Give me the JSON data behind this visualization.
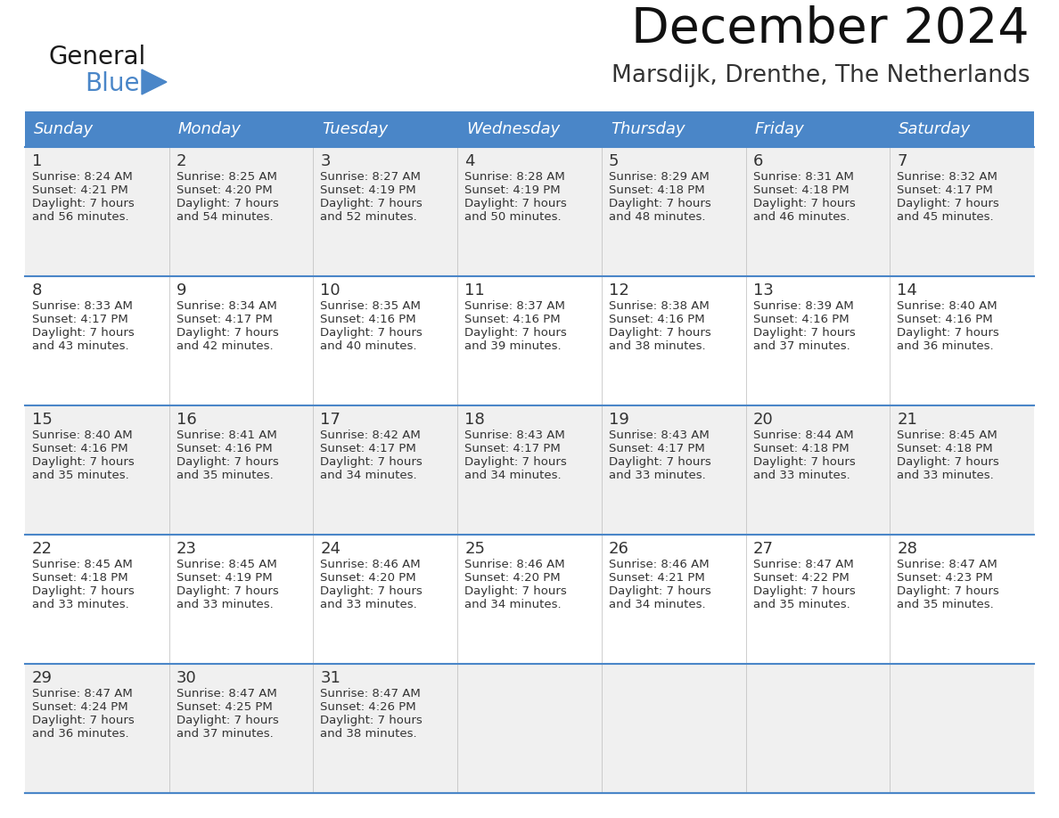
{
  "title": "December 2024",
  "subtitle": "Marsdijk, Drenthe, The Netherlands",
  "header_color": "#4a86c8",
  "header_text_color": "#ffffff",
  "cell_bg_white": "#ffffff",
  "cell_bg_gray": "#f0f0f0",
  "text_color": "#444444",
  "border_color": "#4a86c8",
  "days_of_week": [
    "Sunday",
    "Monday",
    "Tuesday",
    "Wednesday",
    "Thursday",
    "Friday",
    "Saturday"
  ],
  "calendar_data": [
    [
      {
        "day": 1,
        "sunrise": "8:24 AM",
        "sunset": "4:21 PM",
        "daylight": "7 hours and 56 minutes."
      },
      {
        "day": 2,
        "sunrise": "8:25 AM",
        "sunset": "4:20 PM",
        "daylight": "7 hours and 54 minutes."
      },
      {
        "day": 3,
        "sunrise": "8:27 AM",
        "sunset": "4:19 PM",
        "daylight": "7 hours and 52 minutes."
      },
      {
        "day": 4,
        "sunrise": "8:28 AM",
        "sunset": "4:19 PM",
        "daylight": "7 hours and 50 minutes."
      },
      {
        "day": 5,
        "sunrise": "8:29 AM",
        "sunset": "4:18 PM",
        "daylight": "7 hours and 48 minutes."
      },
      {
        "day": 6,
        "sunrise": "8:31 AM",
        "sunset": "4:18 PM",
        "daylight": "7 hours and 46 minutes."
      },
      {
        "day": 7,
        "sunrise": "8:32 AM",
        "sunset": "4:17 PM",
        "daylight": "7 hours and 45 minutes."
      }
    ],
    [
      {
        "day": 8,
        "sunrise": "8:33 AM",
        "sunset": "4:17 PM",
        "daylight": "7 hours and 43 minutes."
      },
      {
        "day": 9,
        "sunrise": "8:34 AM",
        "sunset": "4:17 PM",
        "daylight": "7 hours and 42 minutes."
      },
      {
        "day": 10,
        "sunrise": "8:35 AM",
        "sunset": "4:16 PM",
        "daylight": "7 hours and 40 minutes."
      },
      {
        "day": 11,
        "sunrise": "8:37 AM",
        "sunset": "4:16 PM",
        "daylight": "7 hours and 39 minutes."
      },
      {
        "day": 12,
        "sunrise": "8:38 AM",
        "sunset": "4:16 PM",
        "daylight": "7 hours and 38 minutes."
      },
      {
        "day": 13,
        "sunrise": "8:39 AM",
        "sunset": "4:16 PM",
        "daylight": "7 hours and 37 minutes."
      },
      {
        "day": 14,
        "sunrise": "8:40 AM",
        "sunset": "4:16 PM",
        "daylight": "7 hours and 36 minutes."
      }
    ],
    [
      {
        "day": 15,
        "sunrise": "8:40 AM",
        "sunset": "4:16 PM",
        "daylight": "7 hours and 35 minutes."
      },
      {
        "day": 16,
        "sunrise": "8:41 AM",
        "sunset": "4:16 PM",
        "daylight": "7 hours and 35 minutes."
      },
      {
        "day": 17,
        "sunrise": "8:42 AM",
        "sunset": "4:17 PM",
        "daylight": "7 hours and 34 minutes."
      },
      {
        "day": 18,
        "sunrise": "8:43 AM",
        "sunset": "4:17 PM",
        "daylight": "7 hours and 34 minutes."
      },
      {
        "day": 19,
        "sunrise": "8:43 AM",
        "sunset": "4:17 PM",
        "daylight": "7 hours and 33 minutes."
      },
      {
        "day": 20,
        "sunrise": "8:44 AM",
        "sunset": "4:18 PM",
        "daylight": "7 hours and 33 minutes."
      },
      {
        "day": 21,
        "sunrise": "8:45 AM",
        "sunset": "4:18 PM",
        "daylight": "7 hours and 33 minutes."
      }
    ],
    [
      {
        "day": 22,
        "sunrise": "8:45 AM",
        "sunset": "4:18 PM",
        "daylight": "7 hours and 33 minutes."
      },
      {
        "day": 23,
        "sunrise": "8:45 AM",
        "sunset": "4:19 PM",
        "daylight": "7 hours and 33 minutes."
      },
      {
        "day": 24,
        "sunrise": "8:46 AM",
        "sunset": "4:20 PM",
        "daylight": "7 hours and 33 minutes."
      },
      {
        "day": 25,
        "sunrise": "8:46 AM",
        "sunset": "4:20 PM",
        "daylight": "7 hours and 34 minutes."
      },
      {
        "day": 26,
        "sunrise": "8:46 AM",
        "sunset": "4:21 PM",
        "daylight": "7 hours and 34 minutes."
      },
      {
        "day": 27,
        "sunrise": "8:47 AM",
        "sunset": "4:22 PM",
        "daylight": "7 hours and 35 minutes."
      },
      {
        "day": 28,
        "sunrise": "8:47 AM",
        "sunset": "4:23 PM",
        "daylight": "7 hours and 35 minutes."
      }
    ],
    [
      {
        "day": 29,
        "sunrise": "8:47 AM",
        "sunset": "4:24 PM",
        "daylight": "7 hours and 36 minutes."
      },
      {
        "day": 30,
        "sunrise": "8:47 AM",
        "sunset": "4:25 PM",
        "daylight": "7 hours and 37 minutes."
      },
      {
        "day": 31,
        "sunrise": "8:47 AM",
        "sunset": "4:26 PM",
        "daylight": "7 hours and 38 minutes."
      },
      null,
      null,
      null,
      null
    ]
  ],
  "logo_general_color": "#1a1a1a",
  "logo_blue_color": "#4a86c8",
  "logo_triangle_color": "#4a86c8"
}
